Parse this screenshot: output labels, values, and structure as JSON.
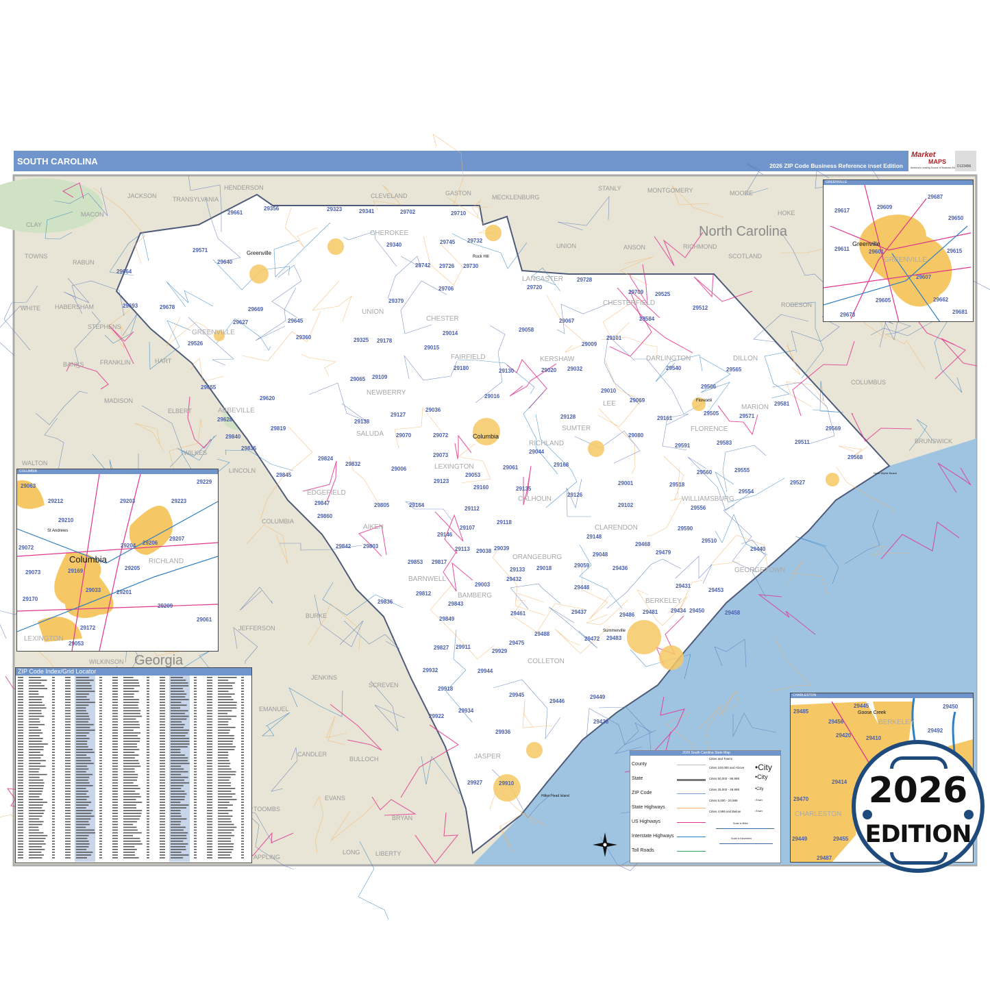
{
  "header": {
    "title": "SOUTH CAROLINA",
    "subtitle": "2026 ZIP Code Business Reference Inset Edition",
    "logo_text": "Market MAPS",
    "logo_tagline": "America's Leading Source of Business Maps",
    "product_id": "D123456"
  },
  "colors": {
    "header_bar": "#6f95cc",
    "state_fill": "#ffffff",
    "neighbor_fill": "#e8e5d6",
    "water": "#9fc4e2",
    "zip_label": "#4a5fae",
    "urban_area": "#f6c865",
    "badge_ring": "#1e4a7c"
  },
  "map": {
    "states": [
      "North Carolina",
      "Georgia"
    ],
    "cities": [
      "Greenville",
      "Columbia",
      "Rock Hill",
      "Florence",
      "Summerville",
      "Hilton Head Island",
      "North Myrtle Beach"
    ],
    "counties": [
      "CHEROKEE",
      "UNION",
      "CHESTER",
      "LANCASTER",
      "CHESTERFIELD",
      "KERSHAW",
      "FAIRFIELD",
      "NEWBERRY",
      "DARLINGTON",
      "LEE",
      "SUMTER",
      "FLORENCE",
      "MARION",
      "DILLON",
      "SALUDA",
      "LEXINGTON",
      "RICHLAND",
      "CALHOUN",
      "CLARENDON",
      "WILLIAMSBURG",
      "GEORGETOWN",
      "ORANGEBURG",
      "BAMBERG",
      "BARNWELL",
      "AIKEN",
      "EDGEFIELD",
      "ABBEVILLE",
      "BERKELEY",
      "COLLETON",
      "JASPER",
      "GREENVILLE"
    ],
    "neighbor_counties": [
      "HENDERSON",
      "CLEVELAND",
      "GASTON",
      "MECKLENBURG",
      "STANLY",
      "MONTGOMERY",
      "MOORE",
      "HOKE",
      "RICHMOND",
      "UNION",
      "ANSON",
      "SCOTLAND",
      "ROBESON",
      "COLUMBUS",
      "BRUNSWICK",
      "JACKSON",
      "TRANSYLVANIA",
      "MACON",
      "CLAY",
      "TOWNS",
      "RABUN",
      "WHITE",
      "HABERSHAM",
      "STEPHENS",
      "FRANKLIN",
      "BANKS",
      "HART",
      "MADISON",
      "ELBERT",
      "WILKES",
      "LINCOLN",
      "COLUMBIA",
      "JEFFERSON",
      "BURKE",
      "JENKINS",
      "SCREVEN",
      "EMANUEL",
      "CANDLER",
      "BULLOCH",
      "TOOMBS",
      "EVANS",
      "BRYAN",
      "LONG",
      "LIBERTY",
      "APPLING",
      "WALTON",
      "WILKINSON"
    ],
    "zip_labels": [
      "29356",
      "29323",
      "29341",
      "29702",
      "29710",
      "29661",
      "29732",
      "29745",
      "29340",
      "29571",
      "29640",
      "29664",
      "29742",
      "29726",
      "29730",
      "29720",
      "29728",
      "29706",
      "29709",
      "29512",
      "29525",
      "29379",
      "29693",
      "29678",
      "29669",
      "29645",
      "29067",
      "29584",
      "29627",
      "29360",
      "29014",
      "29058",
      "29009",
      "29101",
      "29325",
      "29178",
      "29526",
      "29015",
      "29540",
      "29180",
      "29032",
      "29020",
      "29130",
      "29565",
      "29655",
      "29109",
      "29010",
      "29506",
      "29581",
      "29620",
      "29065",
      "29016",
      "29505",
      "29571",
      "29069",
      "29161",
      "29127",
      "29036",
      "29628",
      "29819",
      "29138",
      "29070",
      "29072",
      "29128",
      "29080",
      "29840",
      "29569",
      "29835",
      "29044",
      "29591",
      "29583",
      "29511",
      "29824",
      "29073",
      "29168",
      "29568",
      "29832",
      "29006",
      "29061",
      "29053",
      "29560",
      "29555",
      "29845",
      "29123",
      "29160",
      "29001",
      "29518",
      "29527",
      "29847",
      "29135",
      "29126",
      "29554",
      "29805",
      "29164",
      "29112",
      "29102",
      "29556",
      "29860",
      "29118",
      "29107",
      "29148",
      "29590",
      "29146",
      "29510",
      "29842",
      "29803",
      "29113",
      "29039",
      "29468",
      "29440",
      "29038",
      "29479",
      "29048",
      "29853",
      "29817",
      "29133",
      "29018",
      "29059",
      "29436",
      "29432",
      "29003",
      "29448",
      "29453",
      "29812",
      "29843",
      "29431",
      "29836",
      "29434",
      "29481",
      "29437",
      "29450",
      "29461",
      "29458",
      "29849",
      "29486",
      "29483",
      "29488",
      "29472",
      "29475",
      "29911",
      "29827",
      "29929",
      "29932",
      "29944",
      "29918",
      "29945",
      "29449",
      "29446",
      "29438",
      "29922",
      "29934",
      "29936",
      "29910",
      "29927"
    ]
  },
  "insets": {
    "greenville": {
      "title": "GREENVILLE",
      "city": "Greenville",
      "county": "GREENVILLE",
      "zips": [
        "29617",
        "29609",
        "29687",
        "29650",
        "29611",
        "29601",
        "29615",
        "29607",
        "29605",
        "29662",
        "29681",
        "29673"
      ]
    },
    "columbia": {
      "title": "COLUMBIA",
      "city": "Columbia",
      "place": "St Andrews",
      "counties": [
        "RICHLAND",
        "LEXINGTON"
      ],
      "zips": [
        "29063",
        "29212",
        "29203",
        "29223",
        "29229",
        "29210",
        "29072",
        "29204",
        "29206",
        "29207",
        "29073",
        "29169",
        "29205",
        "29033",
        "29201",
        "29170",
        "29209",
        "29061",
        "29172",
        "29053"
      ]
    },
    "charleston": {
      "title": "CHARLESTON",
      "city": "Goose Creek",
      "counties": [
        "BERKELEY",
        "CHARLESTON"
      ],
      "zips": [
        "29485",
        "29445",
        "29450",
        "29456",
        "29420",
        "29410",
        "29492",
        "29414",
        "29470",
        "29455",
        "29449",
        "29487"
      ]
    }
  },
  "zip_index": {
    "title": "ZIP Code Index/Grid Locator"
  },
  "legend": {
    "title": "2026 South Carolina State Map",
    "line_items": [
      "County",
      "State",
      "ZIP Code",
      "State Highways",
      "US Highways",
      "Interstate Highways",
      "Toll Roads"
    ],
    "cities_heading": "Cities and Towns",
    "city_classes": [
      {
        "label": "Cities 100,000 and Above",
        "sample": "City"
      },
      {
        "label": "Cities 50,000 - 99,999",
        "sample": "City"
      },
      {
        "label": "Cities 25,000 - 49,999",
        "sample": "City"
      },
      {
        "label": "Cities 5,000 - 24,999",
        "sample": "Town"
      },
      {
        "label": "Cities 4,999 and Below",
        "sample": "Town"
      }
    ],
    "scale_miles": "Scale in Miles",
    "scale_km": "Scale in Kilometers"
  },
  "badge": {
    "year": "2026",
    "text": "EDITION"
  }
}
